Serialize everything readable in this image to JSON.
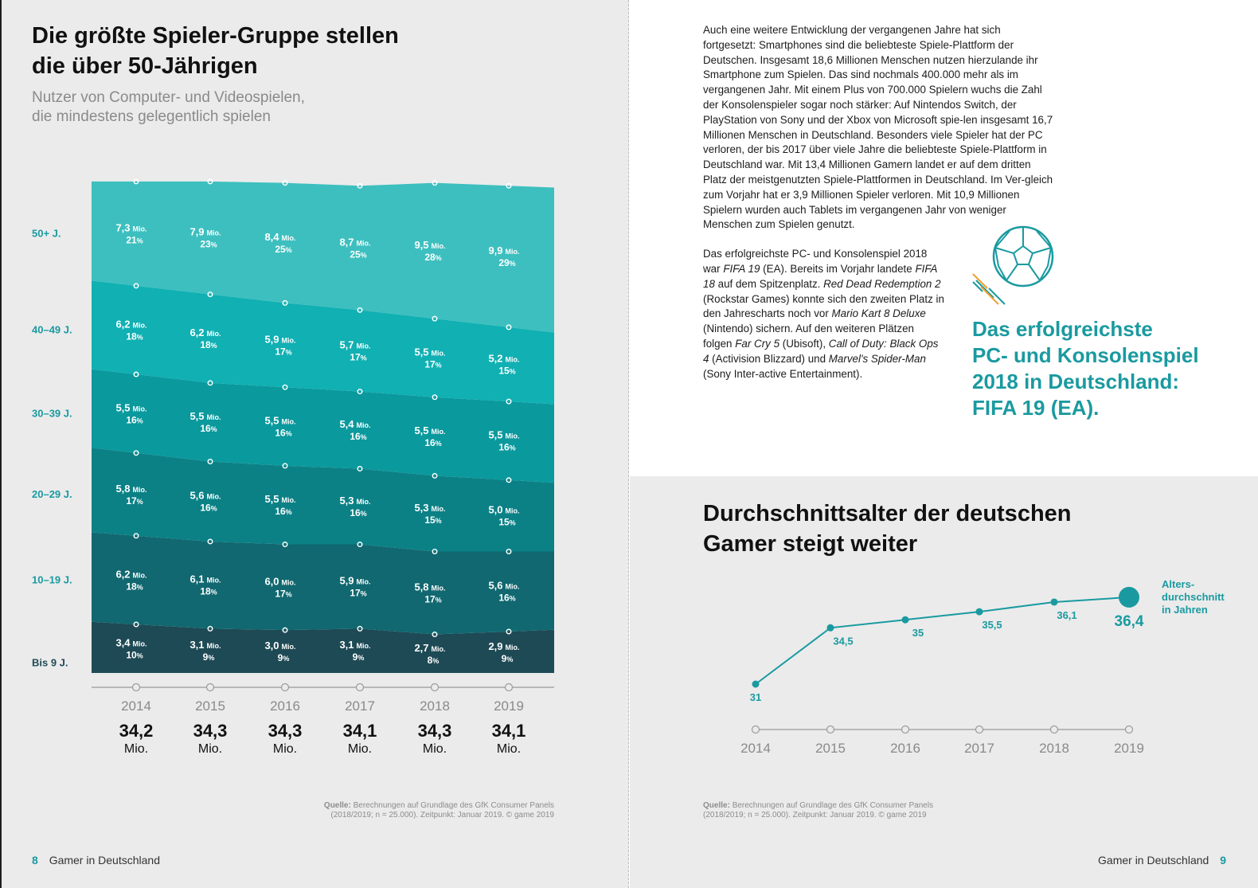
{
  "left_page": {
    "title_line1": "Die größte Spieler-Gruppe stellen",
    "title_line2": "die über 50-Jährigen",
    "subtitle_line1": "Nutzer von Computer- und Videospielen,",
    "subtitle_line2": "die mindestens gelegentlich spielen",
    "source_label": "Quelle:",
    "source_line1": "Berechnungen auf Grundlage des GfK Consumer Panels",
    "source_line2": "(2018/2019; n = 25.000). Zeitpunkt: Januar 2019. © game 2019",
    "page_number": "8",
    "footer_title": "Gamer in Deutschland"
  },
  "right_page": {
    "paragraph1": "Auch eine weitere Entwicklung der vergangenen Jahre hat sich fortgesetzt: Smartphones sind die beliebteste Spiele-Plattform der Deutschen. Insgesamt 18,6 Millionen Menschen nutzen hierzulande ihr Smartphone zum Spielen. Das sind nochmals 400.000 mehr als im vergangenen Jahr. Mit einem Plus von 700.000 Spielern wuchs die Zahl der Konsolenspieler sogar noch stärker: Auf Nintendos Switch, der PlayStation von Sony und der Xbox von Microsoft spie-len insgesamt 16,7 Millionen Menschen in Deutschland. Besonders viele Spieler hat der PC verloren, der bis 2017 über viele Jahre die beliebteste Spiele-Plattform in Deutschland war. Mit 13,4 Millionen Gamern landet er auf dem dritten Platz der meistgenutzten Spiele-Plattformen in Deutschland. Im Ver-gleich zum Vorjahr hat er 3,9 Millionen Spieler verloren. Mit 10,9 Millionen Spielern wurden auch Tablets im vergangenen Jahr von weniger Menschen zum Spielen genutzt.",
    "paragraph2": [
      {
        "t": "Das erfolgreichste PC- und Konsolenspiel 2018 war ",
        "i": false
      },
      {
        "t": "FIFA 19",
        "i": true
      },
      {
        "t": " (EA). Bereits im Vorjahr landete ",
        "i": false
      },
      {
        "t": "FIFA 18",
        "i": true
      },
      {
        "t": " auf dem Spitzenplatz. ",
        "i": false
      },
      {
        "t": "Red Dead Redemption 2",
        "i": true
      },
      {
        "t": " (Rockstar Games) konnte sich den zweiten Platz in den Jahrescharts noch vor ",
        "i": false
      },
      {
        "t": "Mario Kart 8 Deluxe",
        "i": true
      },
      {
        "t": " (Nintendo) sichern. Auf den weiteren Plätzen folgen ",
        "i": false
      },
      {
        "t": "Far Cry 5",
        "i": true
      },
      {
        "t": " (Ubisoft), ",
        "i": false
      },
      {
        "t": "Call of Duty: Black Ops 4",
        "i": true
      },
      {
        "t": " (Activision Blizzard) und ",
        "i": false
      },
      {
        "t": "Marvel's Spider-Man",
        "i": true
      },
      {
        "t": " (Sony Inter-active Entertainment).",
        "i": false
      }
    ],
    "callout_line1": "Das erfolgreichste",
    "callout_line2": "PC- und Konsolenspiel",
    "callout_line3": "2018 in Deutschland:",
    "callout_line4": "FIFA 19 (EA).",
    "ball_icon": "soccer-ball-icon",
    "title_line1": "Durchschnittsalter der deutschen",
    "title_line2": "Gamer steigt weiter",
    "source_label": "Quelle:",
    "source_line1": "Berechnungen auf Grundlage des GfK Consumer Panels",
    "source_line2": "(2018/2019; n = 25.000). Zeitpunkt: Januar 2019. © game 2019",
    "page_number": "9",
    "footer_title": "Gamer in Deutschland"
  },
  "colors": {
    "accent": "#1a9aa0",
    "band_50": "#3dbfbf",
    "band_40": "#10b0b3",
    "band_30": "#0a999d",
    "band_20": "#0b8186",
    "band_10": "#116870",
    "band_0": "#1e4a55",
    "axis": "#9a9a9a"
  },
  "chart_data": [
    {
      "type": "area",
      "stacked": true,
      "title": "",
      "x": [
        "2014",
        "2015",
        "2016",
        "2017",
        "2018",
        "2019"
      ],
      "unit_label": "Mio.",
      "series": [
        {
          "name": "Bis 9 J.",
          "values": [
            3.4,
            3.1,
            3.0,
            3.1,
            2.7,
            2.9
          ],
          "labels": [
            "3,4",
            "3,1",
            "3,0",
            "3,1",
            "2,7",
            "2,9"
          ],
          "shares": [
            "10",
            "9",
            "9",
            "9",
            "8",
            "9"
          ]
        },
        {
          "name": "10–19 J.",
          "values": [
            6.2,
            6.1,
            6.0,
            5.9,
            5.8,
            5.6
          ],
          "labels": [
            "6,2",
            "6,1",
            "6,0",
            "5,9",
            "5,8",
            "5,6"
          ],
          "shares": [
            "18",
            "18",
            "17",
            "17",
            "17",
            "16"
          ]
        },
        {
          "name": "20–29 J.",
          "values": [
            5.8,
            5.6,
            5.5,
            5.3,
            5.3,
            5.0
          ],
          "labels": [
            "5,8",
            "5,6",
            "5,5",
            "5,3",
            "5,3",
            "5,0"
          ],
          "shares": [
            "17",
            "16",
            "16",
            "16",
            "15",
            "15"
          ]
        },
        {
          "name": "30–39 J.",
          "values": [
            5.5,
            5.5,
            5.5,
            5.4,
            5.5,
            5.5
          ],
          "labels": [
            "5,5",
            "5,5",
            "5,5",
            "5,4",
            "5,5",
            "5,5"
          ],
          "shares": [
            "16",
            "16",
            "16",
            "16",
            "16",
            "16"
          ]
        },
        {
          "name": "40–49 J.",
          "values": [
            6.2,
            6.2,
            5.9,
            5.7,
            5.5,
            5.2
          ],
          "labels": [
            "6,2",
            "6,2",
            "5,9",
            "5,7",
            "5,5",
            "5,2"
          ],
          "shares": [
            "18",
            "18",
            "17",
            "17",
            "17",
            "15"
          ]
        },
        {
          "name": "50+ J.",
          "values": [
            7.3,
            7.9,
            8.4,
            8.7,
            9.5,
            9.9
          ],
          "labels": [
            "7,3",
            "7,9",
            "8,4",
            "8,7",
            "9,5",
            "9,9"
          ],
          "shares": [
            "21",
            "23",
            "25",
            "25",
            "28",
            "29"
          ]
        }
      ],
      "totals": [
        34.2,
        34.3,
        34.3,
        34.1,
        34.3,
        34.1
      ],
      "total_labels": [
        "34,2",
        "34,3",
        "34,3",
        "34,1",
        "34,3",
        "34,1"
      ],
      "total_unit": "Mio."
    },
    {
      "type": "line",
      "title": "Durchschnittsalter der deutschen Gamer steigt weiter",
      "x": [
        "2014",
        "2015",
        "2016",
        "2017",
        "2018",
        "2019"
      ],
      "values": [
        31,
        34.5,
        35,
        35.5,
        36.1,
        36.4
      ],
      "labels": [
        "31",
        "34,5",
        "35",
        "35,5",
        "36,1",
        "36,4"
      ],
      "legend_line1": "Alters-",
      "legend_line2": "durchschnitt",
      "legend_line3": "in Jahren",
      "ylim": [
        31,
        36.4
      ]
    }
  ]
}
